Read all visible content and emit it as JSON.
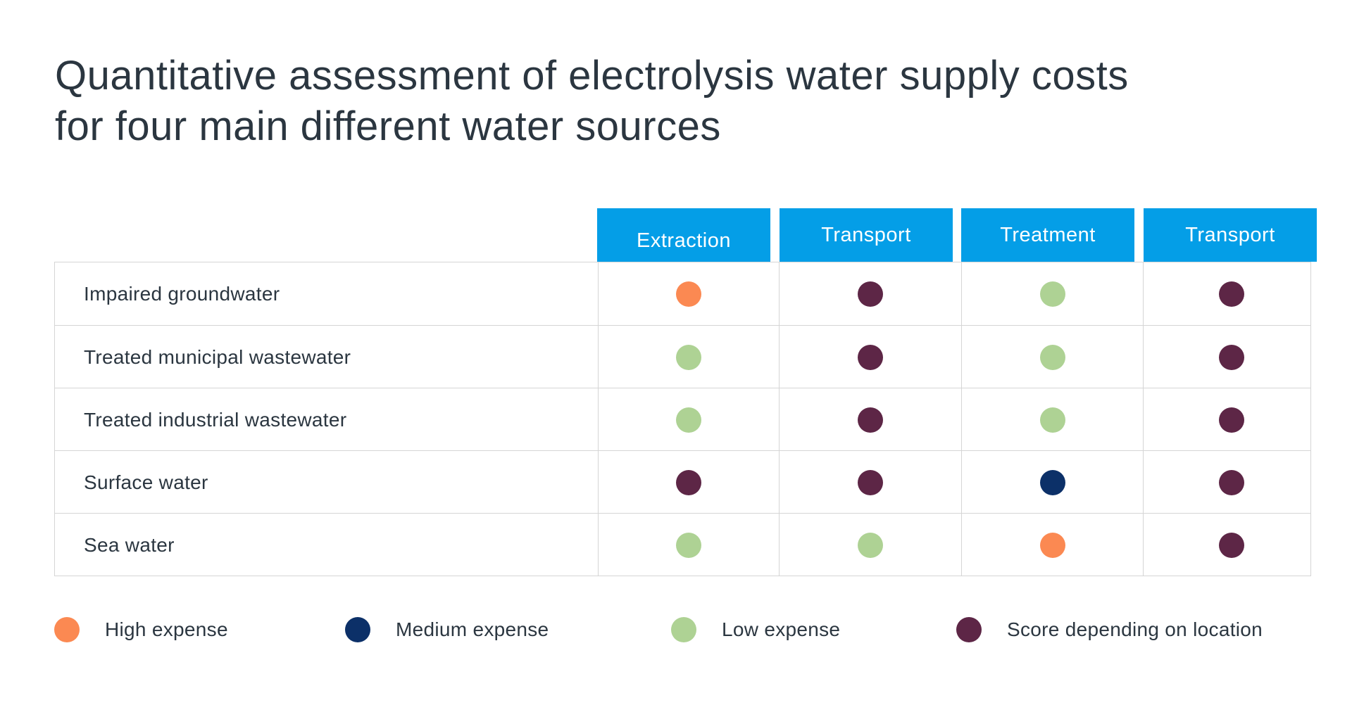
{
  "title_lines": [
    "Quantitative assessment of electrolysis water supply costs",
    "for four main different water sources"
  ],
  "colors": {
    "header_bg": "#049ee7",
    "high": "#fb8952",
    "medium": "#0c3068",
    "low": "#aed294",
    "location": "#5d2646"
  },
  "chart_data": {
    "type": "table",
    "columns": [
      "Extraction",
      "Transport",
      "Treatment",
      "Transport"
    ],
    "rows": [
      {
        "label": "Impaired groundwater",
        "values": [
          "high",
          "location",
          "low",
          "location"
        ]
      },
      {
        "label": "Treated municipal wastewater",
        "values": [
          "low",
          "location",
          "low",
          "location"
        ]
      },
      {
        "label": "Treated industrial wastewater",
        "values": [
          "low",
          "location",
          "low",
          "location"
        ]
      },
      {
        "label": "Surface water",
        "values": [
          "location",
          "location",
          "medium",
          "location"
        ]
      },
      {
        "label": "Sea water",
        "values": [
          "low",
          "low",
          "high",
          "location"
        ]
      }
    ],
    "legend": [
      {
        "key": "high",
        "label": "High expense"
      },
      {
        "key": "medium",
        "label": "Medium expense"
      },
      {
        "key": "low",
        "label": "Low expense"
      },
      {
        "key": "location",
        "label": "Score depending on location"
      }
    ]
  }
}
